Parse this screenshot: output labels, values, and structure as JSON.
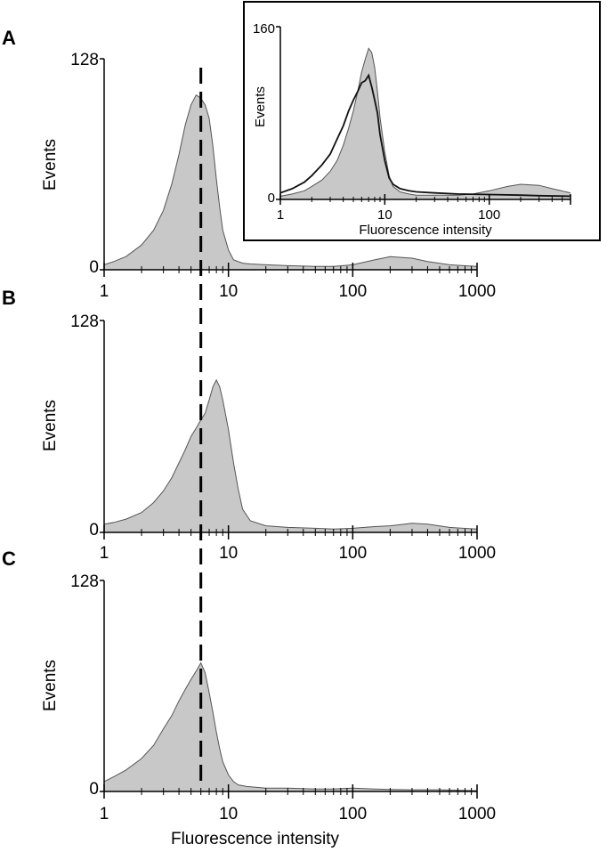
{
  "chart_data": [
    {
      "type": "area",
      "panel": "A",
      "ylabel": "Events",
      "xlabel": "",
      "xscale": "log",
      "xlim": [
        1,
        1000
      ],
      "ylim": [
        0,
        128
      ],
      "xticks": [
        "1",
        "10",
        "100",
        "1000"
      ],
      "yticks": [
        "0",
        "128"
      ],
      "marker_line_x": 6,
      "fill_color": "#c8c8c8",
      "line_color": "#555555",
      "series": [
        {
          "x": [
            1,
            1.2,
            1.5,
            2,
            2.5,
            3,
            3.5,
            4,
            4.5,
            5,
            5.5,
            6,
            6.5,
            7,
            7.5,
            8,
            8.5,
            9,
            10,
            11,
            13,
            15,
            20,
            30,
            50,
            70,
            100,
            150,
            200,
            300,
            400,
            600,
            1000
          ],
          "values": [
            3,
            5,
            8,
            15,
            24,
            36,
            52,
            70,
            88,
            100,
            106,
            104,
            100,
            92,
            75,
            55,
            38,
            24,
            12,
            6,
            4,
            3.5,
            3,
            2.5,
            2,
            2,
            3,
            6,
            8,
            7,
            5,
            3,
            2
          ]
        }
      ]
    },
    {
      "type": "area",
      "panel": "B",
      "ylabel": "Events",
      "xlabel": "",
      "xscale": "log",
      "xlim": [
        1,
        1000
      ],
      "ylim": [
        0,
        128
      ],
      "xticks": [
        "1",
        "10",
        "100",
        "1000"
      ],
      "yticks": [
        "0",
        "128"
      ],
      "marker_line_x": 6,
      "fill_color": "#c8c8c8",
      "line_color": "#555555",
      "series": [
        {
          "x": [
            1,
            1.2,
            1.5,
            2,
            2.5,
            3,
            3.5,
            4,
            4.5,
            5,
            5.5,
            6,
            6.5,
            7,
            7.5,
            8,
            8.5,
            9,
            10,
            11,
            12,
            13,
            15,
            20,
            30,
            50,
            70,
            100,
            150,
            200,
            300,
            400,
            600,
            1000
          ],
          "values": [
            5,
            6,
            8,
            12,
            18,
            25,
            33,
            42,
            50,
            58,
            63,
            68,
            72,
            80,
            88,
            92,
            88,
            80,
            62,
            42,
            26,
            14,
            7,
            4,
            3,
            2.5,
            2,
            2.5,
            3.5,
            4,
            5.5,
            5,
            3,
            2
          ]
        }
      ]
    },
    {
      "type": "area",
      "panel": "C",
      "ylabel": "Events",
      "xlabel": "Fluorescence intensity",
      "xscale": "log",
      "xlim": [
        1,
        1000
      ],
      "ylim": [
        0,
        128
      ],
      "xticks": [
        "1",
        "10",
        "100",
        "1000"
      ],
      "yticks": [
        "0",
        "128"
      ],
      "marker_line_x": 6,
      "fill_color": "#c8c8c8",
      "line_color": "#555555",
      "series": [
        {
          "x": [
            1,
            1.2,
            1.5,
            2,
            2.5,
            3,
            3.5,
            4,
            4.5,
            5,
            5.5,
            6,
            6.5,
            7,
            7.5,
            8,
            8.5,
            9,
            10,
            11,
            12,
            14,
            17,
            20,
            30,
            50,
            70,
            100,
            150,
            200,
            300,
            500,
            1000
          ],
          "values": [
            6,
            9,
            13,
            20,
            28,
            38,
            46,
            55,
            62,
            68,
            73,
            78,
            72,
            60,
            48,
            36,
            26,
            18,
            10,
            6,
            4,
            3,
            2.5,
            2,
            2,
            1.5,
            1.5,
            2,
            1.5,
            1.2,
            1,
            1,
            0.5
          ]
        }
      ]
    },
    {
      "type": "area",
      "panel": "inset",
      "ylabel": "Events",
      "xlabel": "Fluorescence intensity",
      "xscale": "log",
      "xlim": [
        1,
        600
      ],
      "ylim": [
        0,
        160
      ],
      "xticks": [
        "1",
        "10",
        "100"
      ],
      "yticks": [
        "0",
        "160"
      ],
      "fill_color": "#c8c8c8",
      "line_color": "#111111",
      "series": [
        {
          "style": "filled",
          "x": [
            1,
            1.3,
            1.7,
            2,
            2.5,
            3,
            3.5,
            4,
            4.5,
            5,
            5.5,
            6,
            6.5,
            7,
            7.5,
            8,
            8.5,
            9,
            10,
            11,
            12,
            14,
            17,
            20,
            30,
            50,
            70,
            100,
            150,
            200,
            300,
            400,
            600
          ],
          "values": [
            3,
            5,
            8,
            12,
            18,
            26,
            36,
            50,
            66,
            82,
            100,
            118,
            130,
            140,
            136,
            122,
            100,
            76,
            44,
            22,
            12,
            7,
            5,
            4,
            4,
            4,
            5,
            8,
            12,
            14,
            13,
            10,
            6
          ]
        },
        {
          "style": "outline",
          "x": [
            1,
            1.3,
            1.7,
            2,
            2.5,
            3,
            3.5,
            4,
            4.5,
            5,
            5.5,
            6,
            6.5,
            7,
            7.5,
            8,
            8.5,
            9,
            10,
            11,
            12,
            14,
            17,
            20,
            30,
            50,
            100,
            200,
            300,
            600
          ],
          "values": [
            6,
            10,
            16,
            22,
            32,
            42,
            56,
            68,
            82,
            92,
            100,
            108,
            110,
            115,
            104,
            92,
            80,
            60,
            36,
            20,
            14,
            10,
            8,
            7,
            6,
            5,
            4.5,
            4,
            3.5,
            3
          ]
        }
      ]
    }
  ]
}
